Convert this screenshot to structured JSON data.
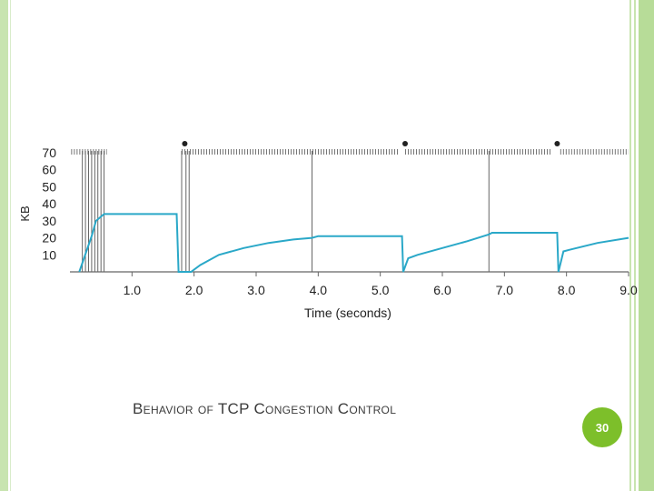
{
  "slide": {
    "title": "Behavior of TCP Congestion Control",
    "page_number": "30"
  },
  "colors": {
    "series": "#2aa8c8",
    "frame_green": "#b7dc98",
    "badge_green": "#7dbf2a",
    "marks": "#555555"
  },
  "chart_data": {
    "type": "line",
    "title": "",
    "xlabel": "Time (seconds)",
    "ylabel": "KB",
    "xlim": [
      0,
      9.0
    ],
    "ylim": [
      0,
      70
    ],
    "x_ticks": [
      1.0,
      2.0,
      3.0,
      4.0,
      5.0,
      6.0,
      7.0,
      8.0,
      9.0
    ],
    "x_tick_labels": [
      "1.0",
      "2.0",
      "3.0",
      "4.0",
      "5.0",
      "6.0",
      "7.0",
      "8.0",
      "9.0"
    ],
    "y_ticks": [
      10,
      20,
      30,
      40,
      50,
      60,
      70
    ],
    "y_tick_labels": [
      "10",
      "20",
      "30",
      "40",
      "50",
      "60",
      "70"
    ],
    "grid": false,
    "series": [
      {
        "x": [
          0.15,
          0.35,
          0.42,
          0.55,
          1.2,
          1.72,
          1.75,
          1.8,
          1.85,
          1.95,
          2.1,
          2.4,
          2.8,
          3.2,
          3.6,
          3.9,
          4.0,
          5.35,
          5.37,
          5.45,
          5.6,
          6.4,
          6.75,
          6.8,
          7.85,
          7.87,
          7.95,
          8.05,
          8.5,
          9.0
        ],
        "y": [
          0,
          21,
          30,
          34,
          34,
          34,
          0,
          0,
          0,
          0,
          4,
          10,
          14,
          17,
          19,
          20,
          21,
          21,
          0,
          8,
          10,
          18,
          22,
          23,
          23,
          0,
          12,
          13,
          17,
          20
        ]
      }
    ],
    "timeouts": [
      1.85,
      5.4,
      7.85
    ],
    "vertical_marks": {
      "x": [
        0.2,
        0.25,
        0.3,
        0.35,
        0.4,
        0.45,
        0.5,
        0.55,
        1.8,
        1.87,
        1.92,
        3.9,
        6.75
      ]
    },
    "top_ticks": [
      {
        "start": 0.02,
        "end": 0.6
      },
      {
        "start": 1.8,
        "end": 5.3
      },
      {
        "start": 5.4,
        "end": 7.75
      },
      {
        "start": 7.9,
        "end": 9.0
      }
    ]
  }
}
